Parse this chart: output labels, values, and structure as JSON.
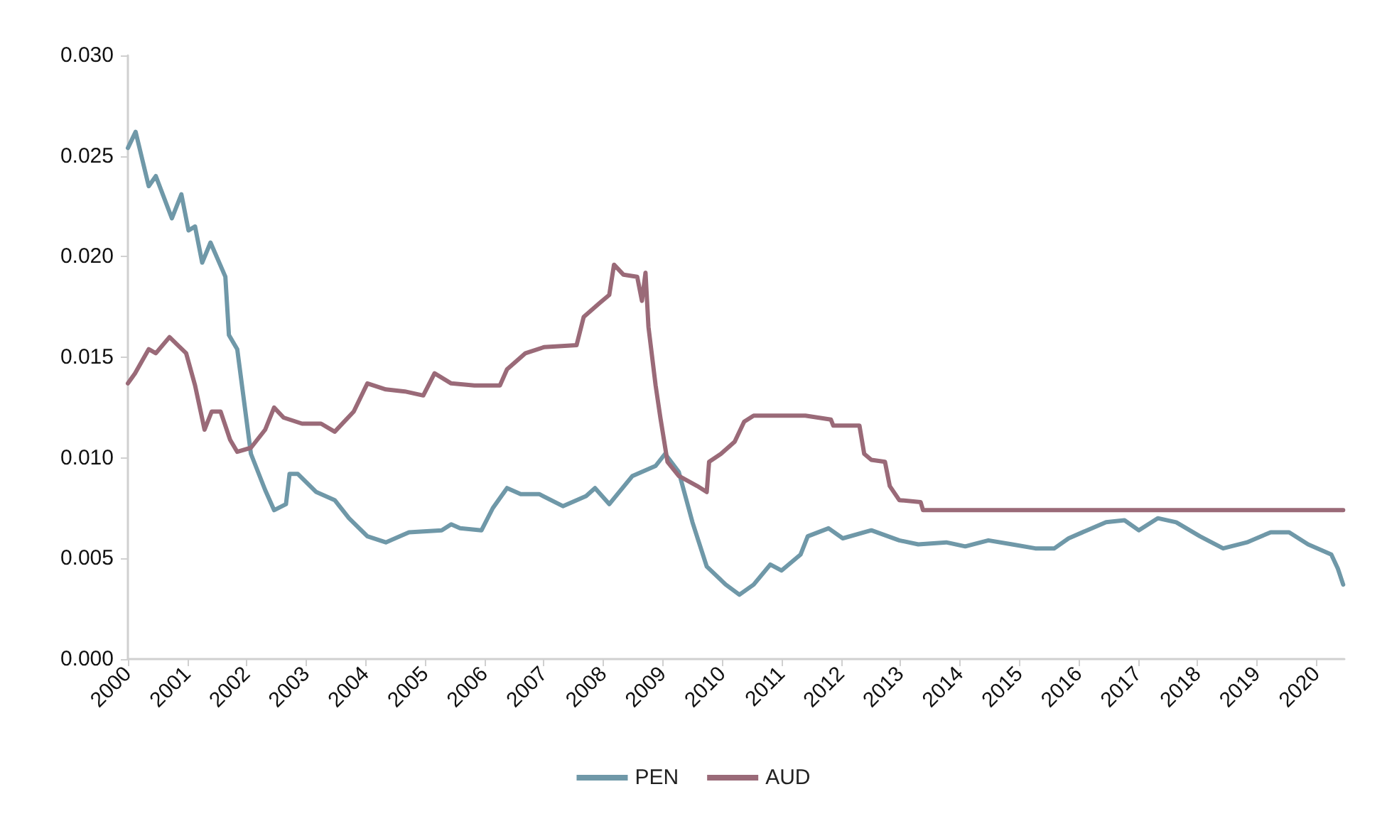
{
  "chart_data": {
    "type": "line",
    "xlim": [
      2000,
      2020.47
    ],
    "xticks": [
      2000,
      2001,
      2002,
      2003,
      2004,
      2005,
      2006,
      2007,
      2008,
      2009,
      2010,
      2011,
      2012,
      2013,
      2014,
      2015,
      2016,
      2017,
      2018,
      2019,
      2020
    ],
    "ylim": [
      0,
      0.03
    ],
    "yticks": [
      {
        "value": 0,
        "label": "0.000"
      },
      {
        "value": 0.005,
        "label": "0.005"
      },
      {
        "value": 0.01,
        "label": "0.010"
      },
      {
        "value": 0.015,
        "label": "0.015"
      },
      {
        "value": 0.02,
        "label": "0.020"
      },
      {
        "value": 0.025,
        "label": "0.025"
      },
      {
        "value": 0.03,
        "label": "0.030"
      }
    ],
    "grid": false,
    "legend": "bottom",
    "marker": "none",
    "line_style": "solid",
    "series": [
      {
        "name": "PEN",
        "color": "#6f98a8",
        "x": [
          2000,
          2000.13,
          2000.35,
          2000.47,
          2000.74,
          2000.9,
          2001.02,
          2001.13,
          2001.25,
          2001.39,
          2001.64,
          2001.7,
          2001.84,
          2002.07,
          2002.31,
          2002.46,
          2002.66,
          2002.72,
          2002.86,
          2003.17,
          2003.48,
          2003.72,
          2004.03,
          2004.34,
          2004.73,
          2005.28,
          2005.44,
          2005.59,
          2005.95,
          2006.14,
          2006.38,
          2006.61,
          2006.92,
          2007.32,
          2007.71,
          2007.86,
          2008.1,
          2008.49,
          2008.88,
          2009.04,
          2009.27,
          2009.5,
          2009.74,
          2010.06,
          2010.29,
          2010.53,
          2010.81,
          2011,
          2011.32,
          2011.44,
          2011.79,
          2012.03,
          2012.51,
          2012.98,
          2013.3,
          2013.77,
          2014.09,
          2014.48,
          2014.88,
          2015.27,
          2015.59,
          2015.83,
          2016.14,
          2016.46,
          2016.77,
          2017.01,
          2017.33,
          2017.64,
          2018.04,
          2018.43,
          2018.83,
          2019.23,
          2019.54,
          2019.86,
          2020.25,
          2020.36,
          2020.45
        ],
        "values": [
          0.0254,
          0.0262,
          0.0235,
          0.024,
          0.0219,
          0.0231,
          0.0213,
          0.0215,
          0.0197,
          0.0207,
          0.019,
          0.0161,
          0.0154,
          0.0102,
          0.0084,
          0.0074,
          0.0077,
          0.0092,
          0.0092,
          0.0083,
          0.0079,
          0.007,
          0.0061,
          0.0058,
          0.0063,
          0.0064,
          0.0067,
          0.0065,
          0.0064,
          0.0075,
          0.0085,
          0.0082,
          0.0082,
          0.0076,
          0.0081,
          0.0085,
          0.0077,
          0.0091,
          0.0096,
          0.0102,
          0.0093,
          0.0068,
          0.0046,
          0.0037,
          0.0032,
          0.0037,
          0.0047,
          0.0044,
          0.0052,
          0.0061,
          0.0065,
          0.006,
          0.0064,
          0.0059,
          0.0057,
          0.0058,
          0.0056,
          0.0059,
          0.0057,
          0.0055,
          0.0055,
          0.006,
          0.0064,
          0.0068,
          0.0069,
          0.0064,
          0.007,
          0.0068,
          0.0061,
          0.0055,
          0.0058,
          0.0063,
          0.0063,
          0.0057,
          0.0052,
          0.0045,
          0.0037
        ]
      },
      {
        "name": "AUD",
        "color": "#9a6a78",
        "x": [
          2000,
          2000.12,
          2000.35,
          2000.47,
          2000.7,
          2000.98,
          2001.13,
          2001.29,
          2001.41,
          2001.56,
          2001.72,
          2001.84,
          2002.07,
          2002.31,
          2002.46,
          2002.62,
          2002.93,
          2003.25,
          2003.48,
          2003.8,
          2004.03,
          2004.34,
          2004.66,
          2004.97,
          2005.16,
          2005.44,
          2005.83,
          2006.26,
          2006.38,
          2006.69,
          2007,
          2007.55,
          2007.67,
          2007.94,
          2008.1,
          2008.18,
          2008.34,
          2008.57,
          2008.65,
          2008.71,
          2008.76,
          2008.88,
          2008.96,
          2009.08,
          2009.27,
          2009.58,
          2009.74,
          2009.78,
          2009.98,
          2010.21,
          2010.37,
          2010.53,
          2010.92,
          2011.4,
          2011.83,
          2011.87,
          2012.31,
          2012.39,
          2012.51,
          2012.74,
          2012.82,
          2012.98,
          2013.34,
          2013.38,
          2020.45
        ],
        "values": [
          0.0137,
          0.0142,
          0.0154,
          0.0152,
          0.016,
          0.0152,
          0.0136,
          0.0114,
          0.0123,
          0.0123,
          0.0109,
          0.0103,
          0.0105,
          0.0114,
          0.0125,
          0.012,
          0.0117,
          0.0117,
          0.0113,
          0.0123,
          0.0137,
          0.0134,
          0.0133,
          0.0131,
          0.0142,
          0.0137,
          0.0136,
          0.0136,
          0.0144,
          0.0152,
          0.0155,
          0.0156,
          0.017,
          0.0177,
          0.0181,
          0.0196,
          0.0191,
          0.019,
          0.0178,
          0.0192,
          0.0165,
          0.0136,
          0.012,
          0.0098,
          0.0091,
          0.0086,
          0.0083,
          0.0098,
          0.0102,
          0.0108,
          0.0118,
          0.0121,
          0.0121,
          0.0121,
          0.0119,
          0.0116,
          0.0116,
          0.0102,
          0.0099,
          0.0098,
          0.0086,
          0.0079,
          0.0078,
          0.0074,
          0.0074
        ]
      }
    ]
  }
}
